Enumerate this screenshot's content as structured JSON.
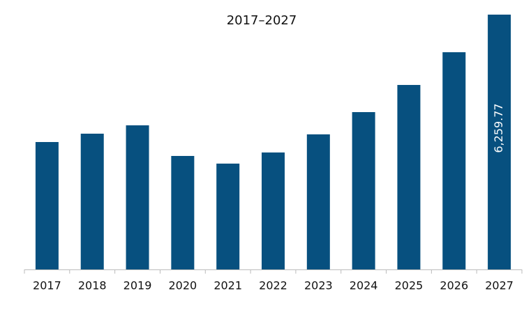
{
  "chart_data": {
    "type": "bar",
    "title": "2017–2027",
    "categories": [
      "2017",
      "2018",
      "2019",
      "2020",
      "2021",
      "2022",
      "2023",
      "2024",
      "2025",
      "2026",
      "2027"
    ],
    "values": [
      3130,
      3335,
      3540,
      2788,
      2600,
      2873,
      3318,
      3865,
      4532,
      5336,
      6259.77
    ],
    "value_labels": [
      null,
      null,
      null,
      null,
      null,
      null,
      null,
      null,
      null,
      null,
      "6,259.77"
    ],
    "color": "#07507f"
  }
}
